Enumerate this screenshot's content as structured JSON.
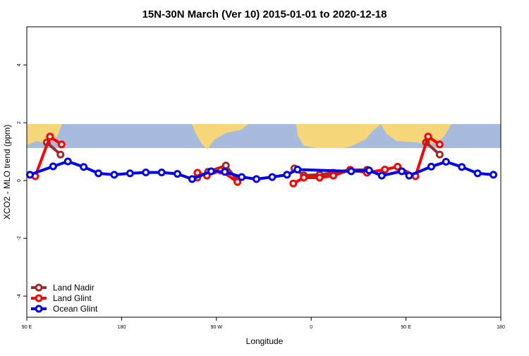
{
  "chart_data": {
    "type": "line",
    "title": "15N-30N March (Ver 10)   2015-01-01 to 2020-12-18",
    "x_label": "Longitude",
    "y_label": "XCO2 - MLO trend (ppm)",
    "xlim": [
      90,
      540
    ],
    "ylim": [
      -4.73,
      5.32
    ],
    "xticks": [
      {
        "value": 90,
        "label": "90 E"
      },
      {
        "value": 180,
        "label": "180"
      },
      {
        "value": 270,
        "label": "90 W"
      },
      {
        "value": 360,
        "label": "0"
      },
      {
        "value": 450,
        "label": "90 E"
      },
      {
        "value": 540,
        "label": "180"
      }
    ],
    "yticks": [
      -4,
      -2,
      0,
      2,
      4
    ],
    "legend": "bottom-left",
    "series": [
      {
        "name": "Land Nadir",
        "color": "#9b2d2d",
        "x": [
          109,
          122,
          null,
          252,
          262,
          279,
          290,
          null,
          344,
          353,
          368,
          381,
          397,
          413,
          null,
          469,
          482
        ],
        "values": [
          1.32,
          0.9,
          null,
          0.1,
          0.3,
          0.52,
          0.0,
          null,
          0.42,
          0.18,
          0.2,
          0.27,
          0.37,
          0.37,
          null,
          1.32,
          0.9
        ]
      },
      {
        "name": "Land Glint",
        "color": "#ff0000",
        "x": [
          98,
          112,
          123,
          null,
          252,
          261,
          274,
          290,
          null,
          343,
          353,
          368,
          381,
          397,
          413,
          430,
          442,
          459,
          471,
          482
        ],
        "values": [
          0.15,
          1.52,
          1.25,
          null,
          0.27,
          0.17,
          0.35,
          -0.05,
          null,
          -0.1,
          0.1,
          0.1,
          0.17,
          0.37,
          0.27,
          0.38,
          0.48,
          0.15,
          1.52,
          1.25
        ]
      },
      {
        "name": "Ocean Glint",
        "color": "#0000ee",
        "x": [
          93,
          115,
          129,
          144,
          158,
          173,
          188,
          203,
          218,
          233,
          247,
          265,
          278,
          294,
          308,
          323,
          337,
          347,
          398,
          415,
          427,
          446,
          453,
          474,
          488,
          503,
          518,
          533
        ],
        "values": [
          0.2,
          0.49,
          0.66,
          0.47,
          0.25,
          0.2,
          0.25,
          0.28,
          0.28,
          0.23,
          0.05,
          0.32,
          0.3,
          0.12,
          0.05,
          0.12,
          0.2,
          0.38,
          0.32,
          0.35,
          0.17,
          0.32,
          0.17,
          0.48,
          0.65,
          0.47,
          0.25,
          0.2
        ]
      }
    ]
  }
}
